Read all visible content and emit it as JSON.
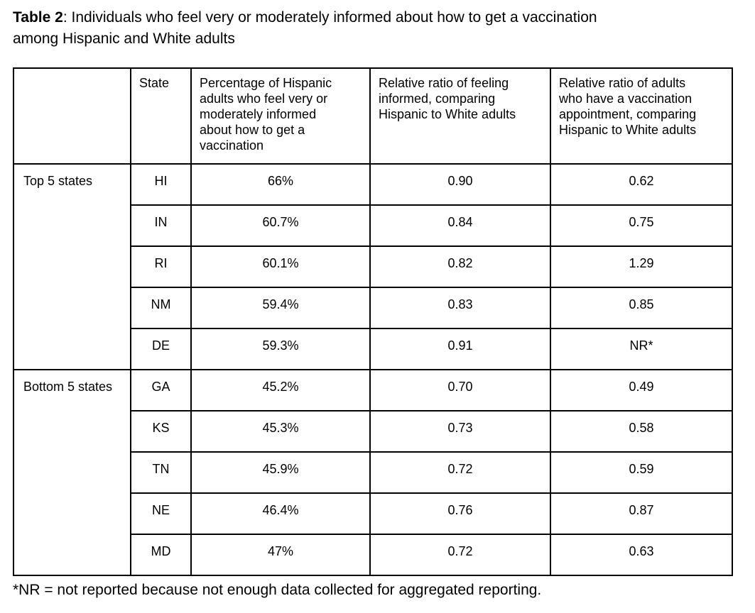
{
  "colors": {
    "text": "#000000",
    "border": "#000000",
    "background": "#ffffff"
  },
  "title": {
    "bold": "Table 2",
    "rest": ": Individuals who feel very or moderately informed about how to get a vaccination",
    "line2": "among Hispanic and White adults"
  },
  "table": {
    "headers": {
      "group": "",
      "state": "State",
      "pct": "Percentage of Hispanic\nadults who feel very or\nmoderately informed\nabout how to get a\nvaccination",
      "ratio_informed": "Relative ratio of feeling\ninformed, comparing\nHispanic to White adults",
      "ratio_appointment": "Relative ratio of adults\nwho have a vaccination\nappointment, comparing\nHispanic to White adults"
    },
    "groups": [
      {
        "label": "Top 5 states",
        "rows": [
          {
            "state": "HI",
            "pct": "66%",
            "ratio_informed": "0.90",
            "ratio_appointment": "0.62"
          },
          {
            "state": "IN",
            "pct": "60.7%",
            "ratio_informed": "0.84",
            "ratio_appointment": "0.75"
          },
          {
            "state": "RI",
            "pct": "60.1%",
            "ratio_informed": "0.82",
            "ratio_appointment": "1.29"
          },
          {
            "state": "NM",
            "pct": "59.4%",
            "ratio_informed": "0.83",
            "ratio_appointment": "0.85"
          },
          {
            "state": "DE",
            "pct": "59.3%",
            "ratio_informed": "0.91",
            "ratio_appointment": "NR*"
          }
        ]
      },
      {
        "label": "Bottom 5 states",
        "rows": [
          {
            "state": "GA",
            "pct": "45.2%",
            "ratio_informed": "0.70",
            "ratio_appointment": "0.49"
          },
          {
            "state": "KS",
            "pct": "45.3%",
            "ratio_informed": "0.73",
            "ratio_appointment": "0.58"
          },
          {
            "state": "TN",
            "pct": "45.9%",
            "ratio_informed": "0.72",
            "ratio_appointment": "0.59"
          },
          {
            "state": "NE",
            "pct": "46.4%",
            "ratio_informed": "0.76",
            "ratio_appointment": "0.87"
          },
          {
            "state": "MD",
            "pct": "47%",
            "ratio_informed": "0.72",
            "ratio_appointment": "0.63"
          }
        ]
      }
    ]
  },
  "footnote": "*NR = not reported because not enough data collected for aggregated reporting."
}
